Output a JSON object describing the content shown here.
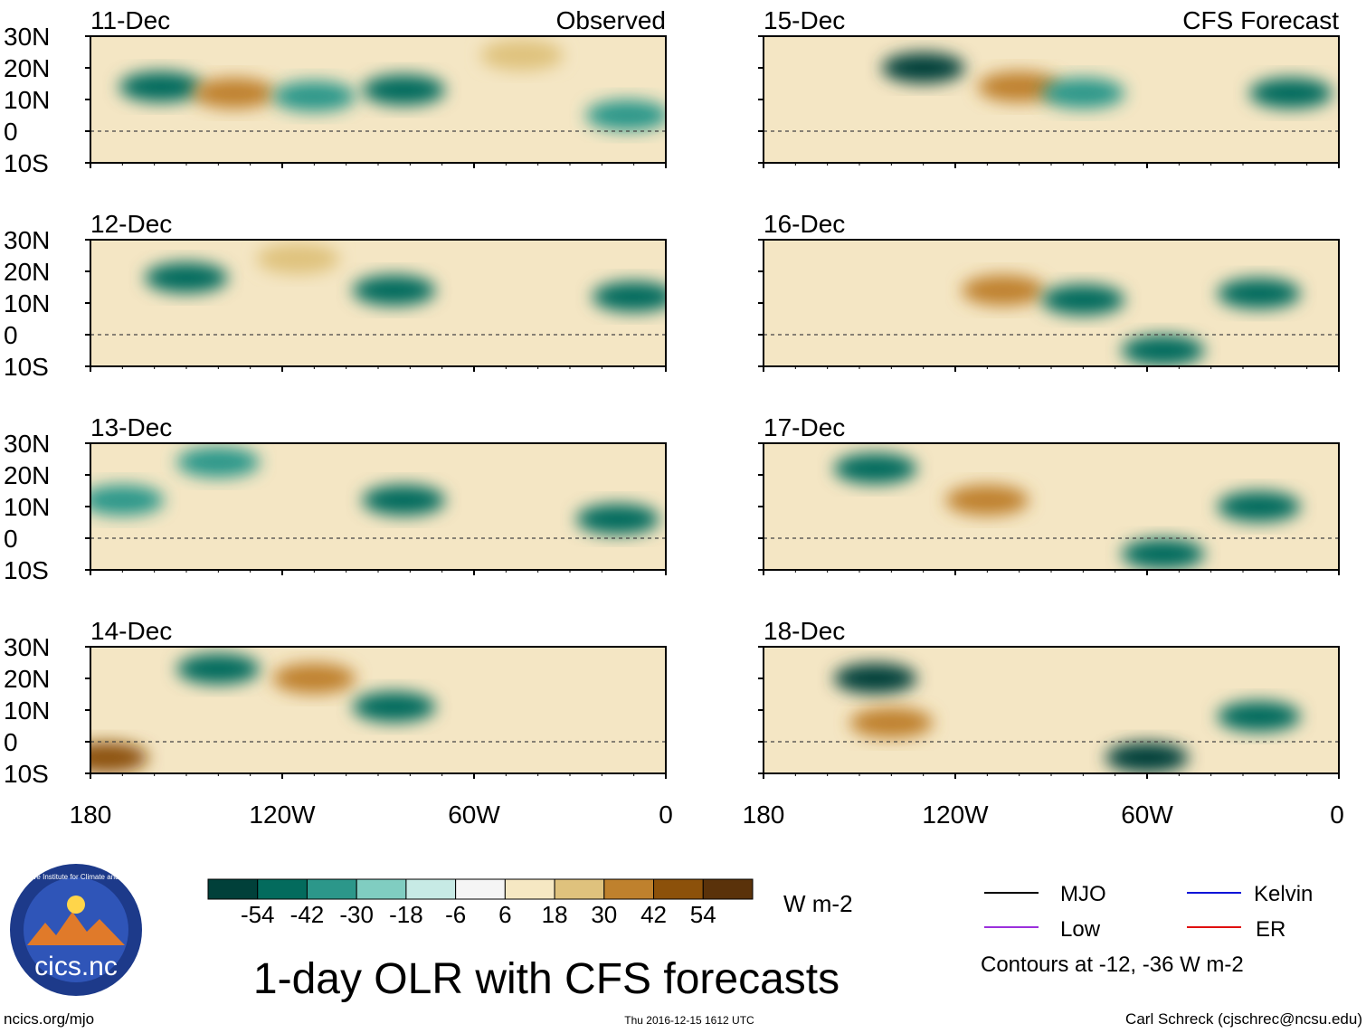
{
  "chart_data": {
    "type": "heatmap",
    "title": "1-day OLR with CFS forecasts",
    "variable": "OLR anomaly",
    "units": "W m-2",
    "columns": [
      {
        "label": "Observed",
        "panels": [
          "11-Dec",
          "12-Dec",
          "13-Dec",
          "14-Dec"
        ]
      },
      {
        "label": "CFS Forecast",
        "panels": [
          "15-Dec",
          "16-Dec",
          "17-Dec",
          "18-Dec"
        ]
      }
    ],
    "xaxis": {
      "range": [
        -180,
        0
      ],
      "ticks": [
        -180,
        -120,
        -60,
        0
      ],
      "tick_labels": [
        "180",
        "120W",
        "60W",
        "0"
      ]
    },
    "yaxis": {
      "range": [
        -10,
        30
      ],
      "ticks": [
        30,
        20,
        10,
        0,
        -10
      ],
      "tick_labels": [
        "30N",
        "20N",
        "10N",
        "0",
        "10S"
      ]
    },
    "colorbar": {
      "levels": [
        -54,
        -42,
        -30,
        -18,
        -6,
        6,
        18,
        30,
        42,
        54
      ],
      "tick_labels": [
        "-54",
        "-42",
        "-30",
        "-18",
        "-6",
        "6",
        "18",
        "30",
        "42",
        "54"
      ],
      "colors": [
        "#01403a",
        "#036b5d",
        "#2c978a",
        "#80cdc1",
        "#c7eae5",
        "#f5f5f5",
        "#f6e8c3",
        "#dfc27d",
        "#bf812d",
        "#8c510a",
        "#5a320a"
      ],
      "units": "W m-2"
    },
    "legend": [
      {
        "name": "MJO",
        "color": "#000000"
      },
      {
        "name": "Kelvin",
        "color": "#0a14d8"
      },
      {
        "name": "Low",
        "color": "#9b30dc"
      },
      {
        "name": "ER",
        "color": "#e01010"
      }
    ],
    "contour_note": "Contours at -12, -36 W m-2",
    "features": [
      {
        "panel": "11-Dec",
        "lon": -158,
        "lat": 14,
        "value": -45
      },
      {
        "panel": "11-Dec",
        "lon": -135,
        "lat": 12,
        "value": 32
      },
      {
        "panel": "11-Dec",
        "lon": -110,
        "lat": 11,
        "value": -38
      },
      {
        "panel": "11-Dec",
        "lon": -82,
        "lat": 13,
        "value": -50
      },
      {
        "panel": "11-Dec",
        "lon": -45,
        "lat": 24,
        "value": 28
      },
      {
        "panel": "11-Dec",
        "lon": -12,
        "lat": 5,
        "value": -40
      },
      {
        "panel": "12-Dec",
        "lon": -150,
        "lat": 18,
        "value": -48
      },
      {
        "panel": "12-Dec",
        "lon": -85,
        "lat": 14,
        "value": -44
      },
      {
        "panel": "12-Dec",
        "lon": -115,
        "lat": 24,
        "value": 30
      },
      {
        "panel": "12-Dec",
        "lon": -10,
        "lat": 12,
        "value": -42
      },
      {
        "panel": "13-Dec",
        "lon": -140,
        "lat": 24,
        "value": -40
      },
      {
        "panel": "13-Dec",
        "lon": -82,
        "lat": 12,
        "value": -52
      },
      {
        "panel": "13-Dec",
        "lon": -170,
        "lat": 12,
        "value": -38
      },
      {
        "panel": "13-Dec",
        "lon": -15,
        "lat": 6,
        "value": -50
      },
      {
        "panel": "14-Dec",
        "lon": -140,
        "lat": 23,
        "value": -50
      },
      {
        "panel": "14-Dec",
        "lon": -110,
        "lat": 20,
        "value": 40
      },
      {
        "panel": "14-Dec",
        "lon": -175,
        "lat": -5,
        "value": 50
      },
      {
        "panel": "14-Dec",
        "lon": -85,
        "lat": 11,
        "value": -42
      },
      {
        "panel": "15-Dec",
        "lon": -130,
        "lat": 20,
        "value": -55
      },
      {
        "panel": "15-Dec",
        "lon": -100,
        "lat": 14,
        "value": 40
      },
      {
        "panel": "15-Dec",
        "lon": -80,
        "lat": 12,
        "value": -40
      },
      {
        "panel": "15-Dec",
        "lon": -15,
        "lat": 12,
        "value": -50
      },
      {
        "panel": "16-Dec",
        "lon": -105,
        "lat": 14,
        "value": 42
      },
      {
        "panel": "16-Dec",
        "lon": -80,
        "lat": 11,
        "value": -45
      },
      {
        "panel": "16-Dec",
        "lon": -25,
        "lat": 13,
        "value": -52
      },
      {
        "panel": "16-Dec",
        "lon": -55,
        "lat": -5,
        "value": -45
      },
      {
        "panel": "17-Dec",
        "lon": -145,
        "lat": 22,
        "value": -52
      },
      {
        "panel": "17-Dec",
        "lon": -55,
        "lat": -5,
        "value": -50
      },
      {
        "panel": "17-Dec",
        "lon": -25,
        "lat": 10,
        "value": -45
      },
      {
        "panel": "17-Dec",
        "lon": -110,
        "lat": 12,
        "value": 35
      },
      {
        "panel": "18-Dec",
        "lon": -145,
        "lat": 20,
        "value": -55
      },
      {
        "panel": "18-Dec",
        "lon": -60,
        "lat": -5,
        "value": -55
      },
      {
        "panel": "18-Dec",
        "lon": -25,
        "lat": 8,
        "value": -48
      },
      {
        "panel": "18-Dec",
        "lon": -140,
        "lat": 6,
        "value": 42
      }
    ]
  },
  "logo": {
    "text": "cics.nc",
    "ring_text": "Cooperative Institute for Climate and Satellites"
  },
  "footer": {
    "left": "ncics.org/mjo",
    "center": "Thu 2016-12-15 1612 UTC",
    "right": "Carl Schreck (cjschrec@ncsu.edu)"
  }
}
